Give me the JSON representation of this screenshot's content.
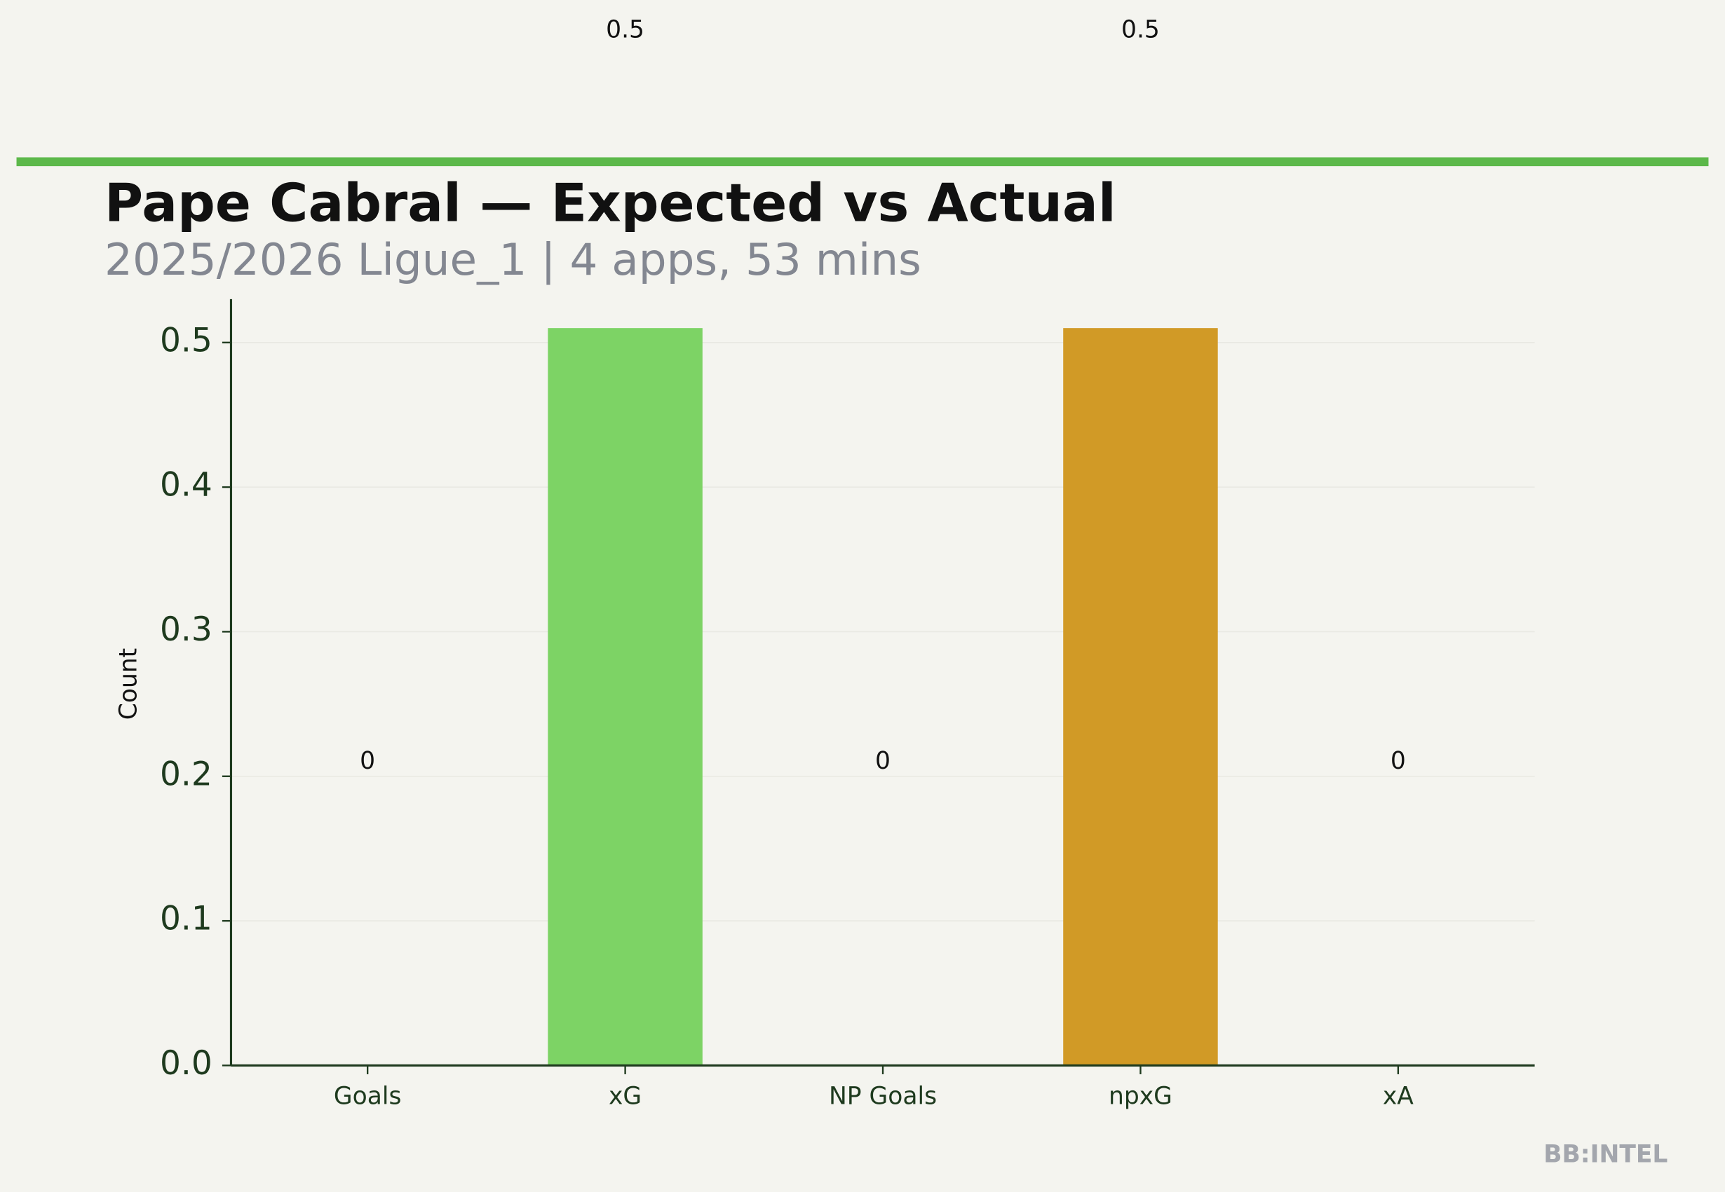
{
  "chart_data": {
    "type": "bar",
    "title": "Pape Cabral — Expected vs Actual",
    "subtitle": "2025/2026 Ligue_1 | 4 apps, 53 mins",
    "y_label": "Count",
    "watermark": "BB:INTEL",
    "categories": [
      "Goals",
      "xG",
      "NP Goals",
      "npxG",
      "xA"
    ],
    "values": [
      0,
      0.51,
      0,
      0.51,
      0
    ],
    "value_labels": [
      "0",
      "0.5",
      "0",
      "0.5",
      "0"
    ],
    "colors": [
      "#7dd365",
      "#7dd365",
      "#d19a26",
      "#d19a26",
      "#7dd365"
    ],
    "ylim": [
      0,
      0.53
    ],
    "yticks": [
      {
        "value": 0,
        "label": "0.0"
      },
      0.1,
      0.2,
      0.3,
      0.4,
      0.5
    ],
    "grid": true
  }
}
